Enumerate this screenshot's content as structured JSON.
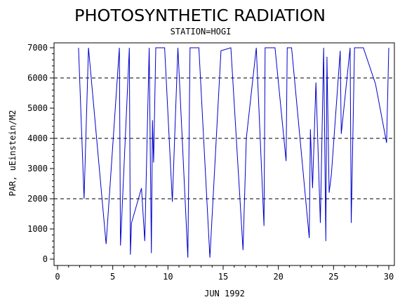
{
  "chart_data": {
    "type": "line",
    "title": "PHOTOSYNTHETIC RADIATION",
    "subtitle": "STATION=HOGI",
    "xlabel": "JUN 1992",
    "ylabel": "PAR, uEinstein/M2",
    "xlim": [
      0,
      30
    ],
    "ylim": [
      0,
      7000
    ],
    "x_ticks": [
      "0",
      "5",
      "10",
      "15",
      "20",
      "25",
      "30"
    ],
    "y_ticks": [
      "0",
      "1000",
      "2000",
      "3000",
      "4000",
      "5000",
      "6000",
      "7000"
    ],
    "reference_lines_y": [
      2000,
      4000,
      6000
    ],
    "line_color": "#0000cc",
    "series": [
      {
        "x": [
          1.9,
          2.4,
          2.8,
          4.4,
          5.6,
          5.7,
          6.5,
          6.6,
          6.7,
          7.6,
          7.9,
          8.3,
          8.5,
          8.6,
          8.7,
          8.9,
          9.0,
          9.7,
          10.4,
          10.9,
          11.8,
          12.0,
          12.8,
          13.8,
          14.8,
          15.7,
          16.8,
          17.1,
          18.0,
          18.7,
          18.8,
          19.7,
          20.7,
          20.8,
          21.2,
          22.8,
          22.9,
          23.1,
          23.4,
          23.8,
          24.1,
          24.3,
          24.4,
          24.6,
          24.8,
          25.6,
          25.7,
          26.5,
          26.6,
          26.9,
          27.7,
          28.8,
          29.8,
          30.0
        ],
        "y": [
          7000,
          2000,
          7000,
          500,
          7000,
          450,
          7000,
          150,
          1200,
          2350,
          600,
          7000,
          200,
          4600,
          3200,
          7000,
          7000,
          7000,
          1900,
          7000,
          50,
          7000,
          7000,
          50,
          6900,
          7000,
          300,
          4000,
          7000,
          1100,
          7000,
          7000,
          3250,
          7000,
          7000,
          700,
          4300,
          2350,
          5850,
          1200,
          7000,
          600,
          6700,
          2200,
          2800,
          6900,
          4150,
          7000,
          1200,
          7000,
          7000,
          5800,
          3850,
          7000
        ]
      }
    ]
  }
}
